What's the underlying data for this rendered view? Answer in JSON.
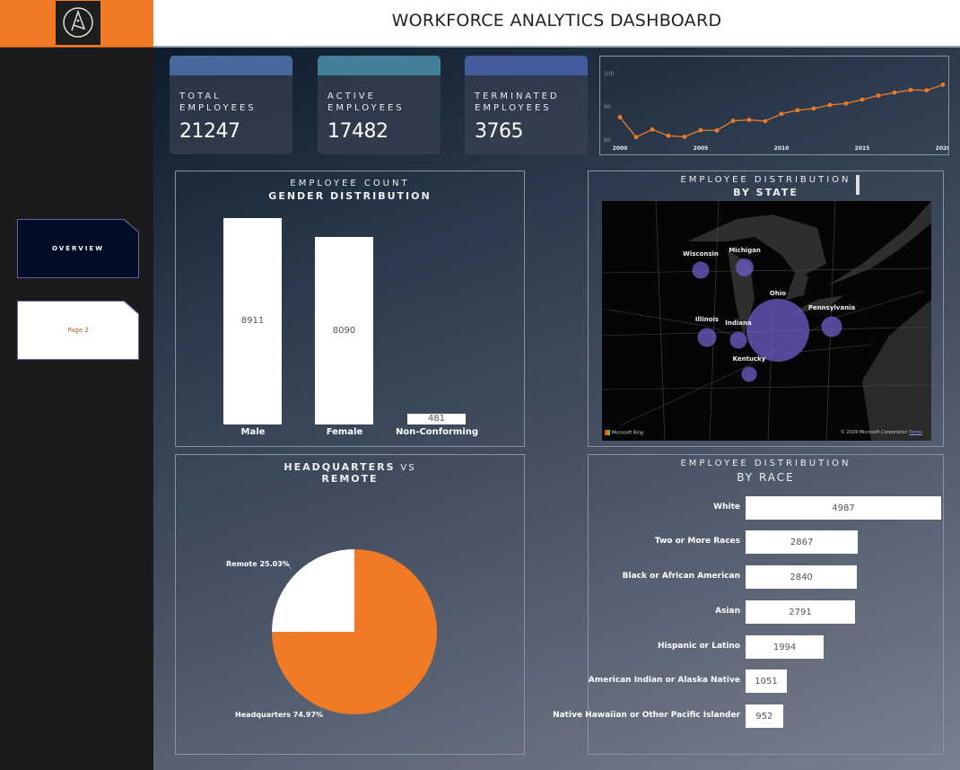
{
  "header": {
    "title": "WORKFORCE ANALYTICS DASHBOARD",
    "logo_icon": "compass-a-logo"
  },
  "sidebar": {
    "items": [
      {
        "label": "OVERVIEW",
        "active": true
      },
      {
        "label": "Page 2",
        "active": false
      }
    ]
  },
  "kpis": [
    {
      "label1": "TOTAL",
      "label2": "EMPLOYEES",
      "value": "21247",
      "color": "#46689a"
    },
    {
      "label1": "ACTIVE",
      "label2": "EMPLOYEES",
      "value": "17482",
      "color": "#447f9a"
    },
    {
      "label1": "TERMINATED",
      "label2": "EMPLOYEES",
      "value": "3765",
      "color": "#435c9e"
    }
  ],
  "colors": {
    "accent": "#f07a26",
    "bubble": "#6e5fc8"
  },
  "chart_data": [
    {
      "type": "line",
      "title": "",
      "x": [
        2000,
        2001,
        2002,
        2003,
        2004,
        2005,
        2006,
        2007,
        2008,
        2009,
        2010,
        2011,
        2012,
        2013,
        2014,
        2015,
        2016,
        2017,
        2018,
        2019,
        2020
      ],
      "values": [
        86.6,
        80.6,
        82.9,
        81,
        80.7,
        82.7,
        82.6,
        85.5,
        85.8,
        85.4,
        87.6,
        88.7,
        89.2,
        90.3,
        90.7,
        91.9,
        93.1,
        94,
        94.8,
        94.7,
        96.4
      ],
      "xticks": [
        "2000",
        "2005",
        "2010",
        "2015",
        "2020"
      ],
      "yticks": [
        "100",
        "90",
        "80"
      ],
      "ylim": [
        80,
        100
      ]
    },
    {
      "type": "bar",
      "title": "EMPLOYEE COUNT",
      "subtitle": "GENDER DISTRIBUTION",
      "categories": [
        "Male",
        "Female",
        "Non-Conforming"
      ],
      "values": [
        8911,
        8090,
        481
      ]
    },
    {
      "type": "pie",
      "title": "HEADQUARTERS",
      "title_vs": "VS",
      "subtitle": "REMOTE",
      "slices": [
        {
          "label": "Headquarters",
          "value": 74.97,
          "text": "Headquarters 74.97%",
          "color": "#f07a26"
        },
        {
          "label": "Remote",
          "value": 25.03,
          "text": "Remote 25.03%",
          "color": "#ffffff"
        }
      ]
    },
    {
      "type": "bar",
      "orientation": "horizontal",
      "title": "EMPLOYEE DISTRIBUTION",
      "subtitle": "BY RACE",
      "categories": [
        "White",
        "Two or More Races",
        "Black or African American",
        "Asian",
        "Hispanic or Latino",
        "American Indian or Alaska Native",
        "Native Hawaiian or Other Pacific Islander"
      ],
      "values": [
        4987,
        2867,
        2840,
        2791,
        1994,
        1051,
        952
      ]
    }
  ],
  "map": {
    "title": "EMPLOYEE DISTRIBUTION",
    "subtitle": "BY STATE",
    "states": [
      "Wisconsin",
      "Michigan",
      "Ohio",
      "Pennsylvania",
      "Illinois",
      "Indiana",
      "Kentucky"
    ],
    "attribution": "Microsoft Bing",
    "copyright": "© 2024 Microsoft Corporation",
    "terms": "Terms"
  }
}
